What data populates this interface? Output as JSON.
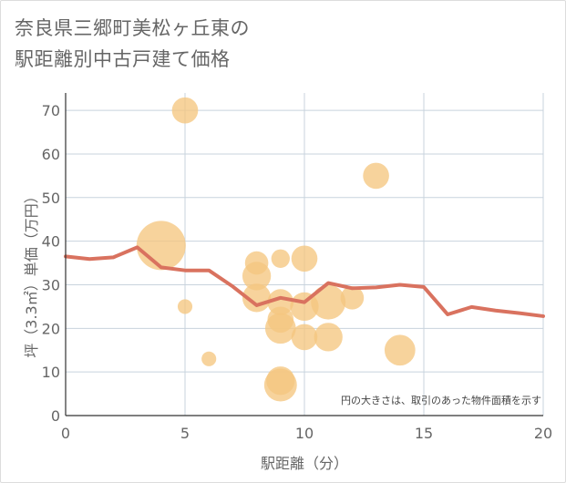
{
  "title_lines": [
    "奈良県三郷町美松ヶ丘東の",
    "駅距離別中古戸建て価格"
  ],
  "chart_data": {
    "type": "scatter",
    "title": "奈良県三郷町美松ヶ丘東の駅距離別中古戸建て価格",
    "xlabel": "駅距離（分）",
    "ylabel": "坪（3.3㎡）単価（万円）",
    "xlim": [
      0,
      20
    ],
    "ylim": [
      0,
      74
    ],
    "xticks": [
      0,
      5,
      10,
      15,
      20
    ],
    "yticks": [
      0,
      10,
      20,
      30,
      40,
      50,
      60,
      70
    ],
    "grid": true,
    "annotation": "円の大きさは、取引のあった物件面積を示す",
    "bubble_color": "#f5c780",
    "line_color": "#d9725f",
    "points": [
      {
        "x": 4,
        "y": 39,
        "size": 9
      },
      {
        "x": 5,
        "y": 70,
        "size": 2
      },
      {
        "x": 5,
        "y": 25,
        "size": 0.4
      },
      {
        "x": 6,
        "y": 13,
        "size": 0.4
      },
      {
        "x": 8,
        "y": 35,
        "size": 1.5
      },
      {
        "x": 8,
        "y": 32,
        "size": 2.5
      },
      {
        "x": 8,
        "y": 27,
        "size": 2.5
      },
      {
        "x": 9,
        "y": 36,
        "size": 0.8
      },
      {
        "x": 9,
        "y": 26,
        "size": 2
      },
      {
        "x": 9,
        "y": 22,
        "size": 2
      },
      {
        "x": 9,
        "y": 20,
        "size": 3
      },
      {
        "x": 9,
        "y": 8,
        "size": 2.5
      },
      {
        "x": 9,
        "y": 7,
        "size": 3.5
      },
      {
        "x": 10,
        "y": 36,
        "size": 2
      },
      {
        "x": 10,
        "y": 25,
        "size": 2.5
      },
      {
        "x": 10,
        "y": 18,
        "size": 2
      },
      {
        "x": 11,
        "y": 26,
        "size": 4
      },
      {
        "x": 11,
        "y": 18,
        "size": 2.5
      },
      {
        "x": 12,
        "y": 27,
        "size": 1.5
      },
      {
        "x": 13,
        "y": 55,
        "size": 2
      },
      {
        "x": 14,
        "y": 15,
        "size": 3
      }
    ],
    "series": [
      {
        "x": [
          0,
          1,
          2,
          3,
          4,
          5,
          6,
          7,
          8,
          9,
          10,
          11,
          12,
          13,
          14,
          15,
          16,
          17,
          18,
          19,
          20
        ],
        "y": [
          36.5,
          35.9,
          36.3,
          38.6,
          34.0,
          33.3,
          33.3,
          29.6,
          25.3,
          27.0,
          26.0,
          30.4,
          29.2,
          29.4,
          30.0,
          29.5,
          23.2,
          24.9,
          24.1,
          23.5,
          22.8
        ]
      }
    ]
  }
}
